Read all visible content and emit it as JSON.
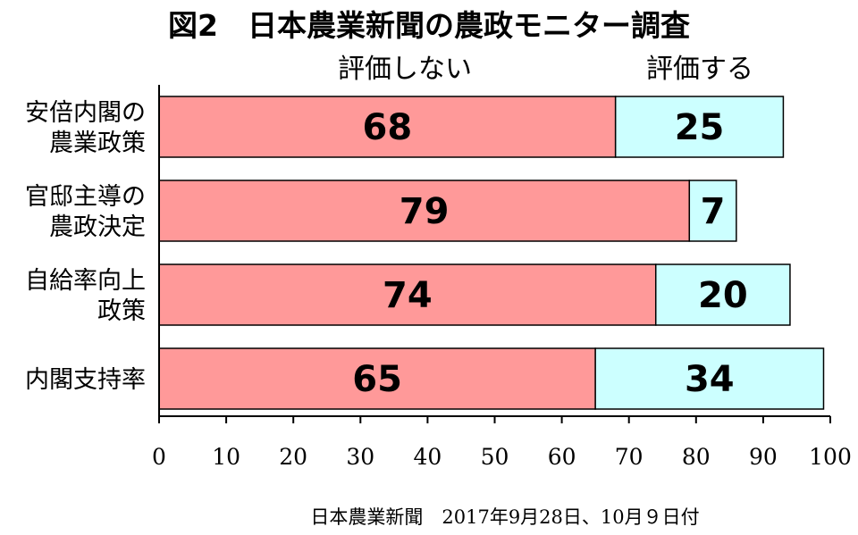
{
  "chart_data": {
    "type": "bar",
    "orientation": "horizontal",
    "stacked": true,
    "title": "図2　日本農業新聞の農政モニター調査",
    "categories": [
      [
        "安倍内閣の",
        "農業政策"
      ],
      [
        "官邸主導の",
        "農政決定"
      ],
      [
        "自給率向上",
        "政策"
      ],
      [
        "内閣支持率"
      ]
    ],
    "series": [
      {
        "name": "評価しない",
        "values": [
          68,
          79,
          74,
          65
        ],
        "color": "#ff9999"
      },
      {
        "name": "評価する",
        "values": [
          25,
          7,
          20,
          34
        ],
        "color": "#ccffff"
      }
    ],
    "xlim": [
      0,
      100
    ],
    "xticks": [
      "0",
      "10",
      "20",
      "30",
      "40",
      "50",
      "60",
      "70",
      "80",
      "90",
      "100"
    ],
    "grid": false,
    "legend_position": "top"
  },
  "source": "日本農業新聞　2017年9月28日、10月９日付"
}
